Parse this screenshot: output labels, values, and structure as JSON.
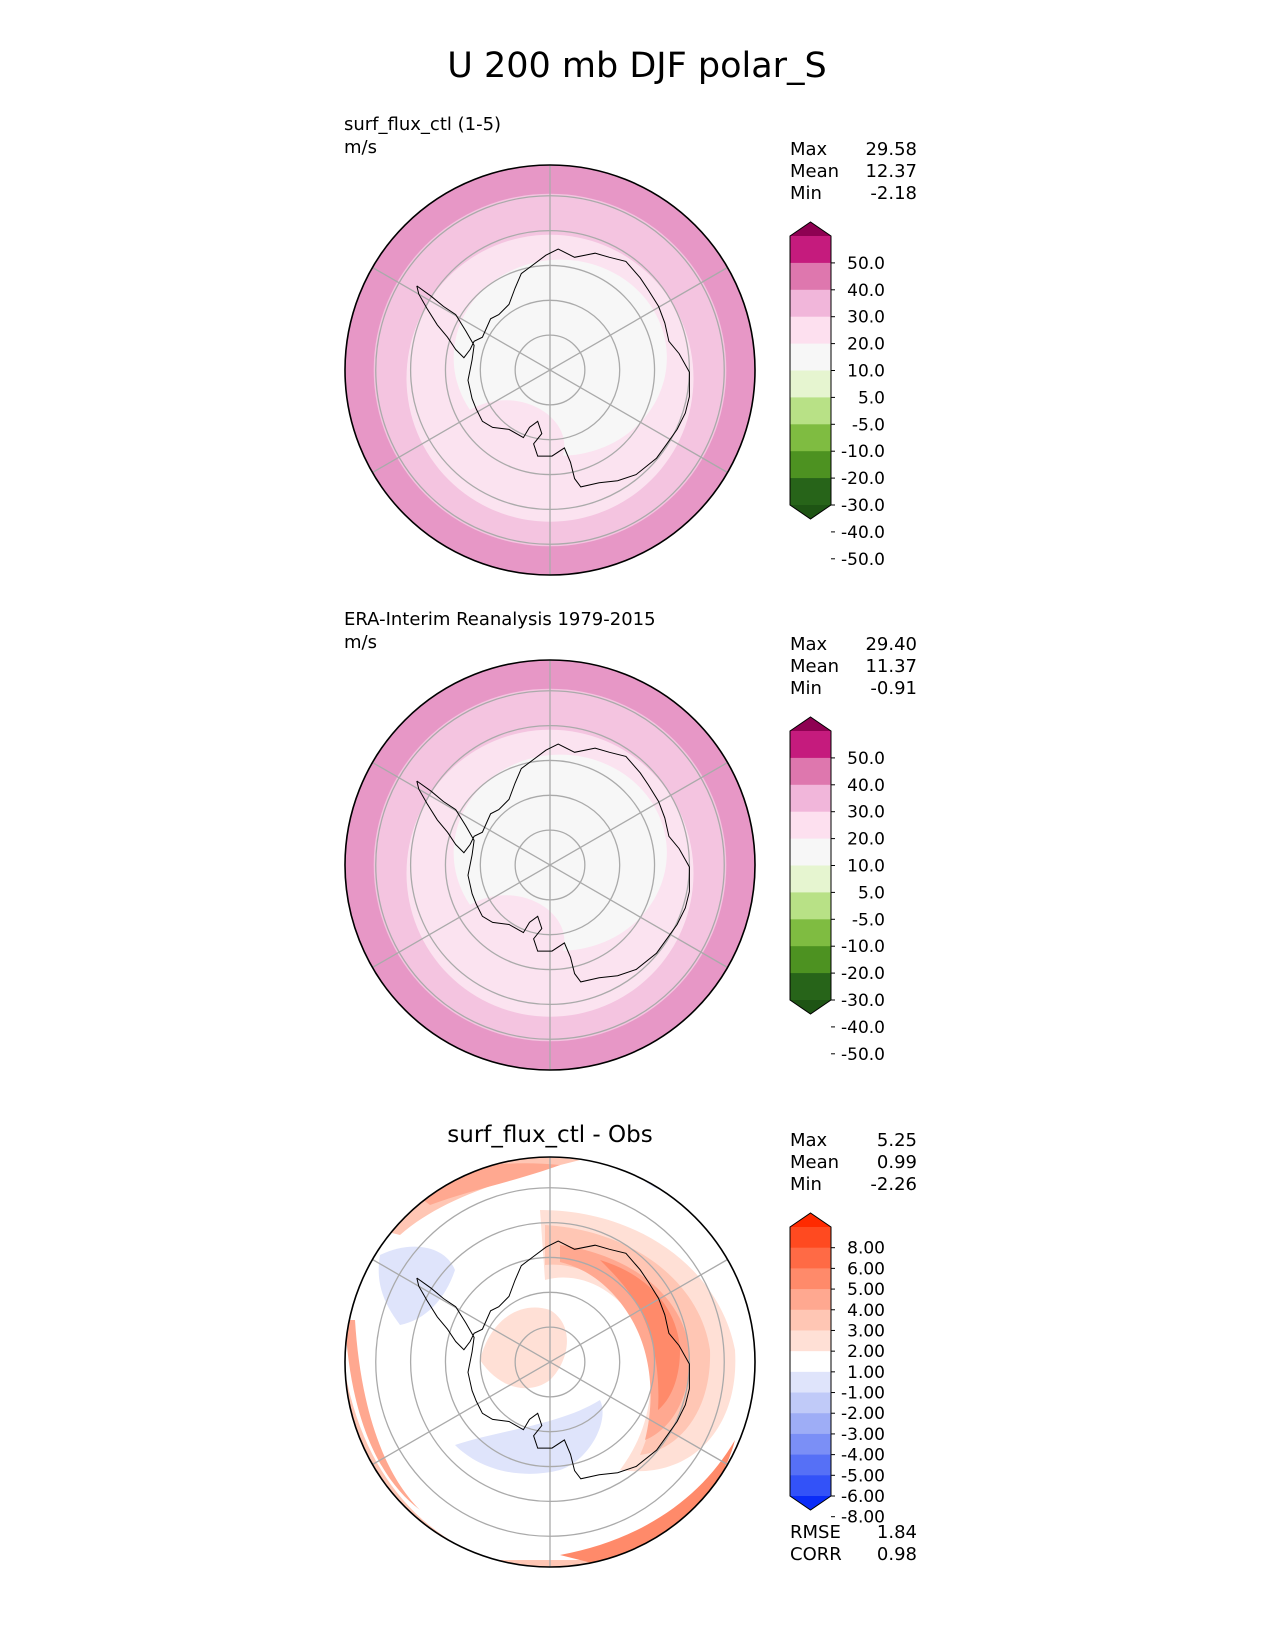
{
  "figure": {
    "title": "U 200 mb DJF polar_S"
  },
  "chart_data": [
    {
      "type": "heatmap",
      "projection": "south-polar-stereographic",
      "name": "surf_flux_ctl (1-5)",
      "units": "m/s",
      "stats": [
        {
          "label": "Max",
          "value": "29.58"
        },
        {
          "label": "Mean",
          "value": "12.37"
        },
        {
          "label": "Min",
          "value": "-2.18"
        }
      ],
      "colorbar": {
        "levels": [
          "50.0",
          "40.0",
          "30.0",
          "20.0",
          "10.0",
          "5.0",
          "-5.0",
          "-10.0",
          "-20.0",
          "-30.0",
          "-40.0",
          "-50.0"
        ],
        "colors": [
          "#8e0152",
          "#c51b7d",
          "#de77ae",
          "#f1b6da",
          "#fde0ef",
          "#f7f7f7",
          "#e6f5d0",
          "#b8e186",
          "#7fbc41",
          "#4d9221",
          "#276419",
          "#1e5414"
        ],
        "extend": "both"
      },
      "rings": [
        "#e797c6",
        "#f4c4e0",
        "#fbe3f0",
        "#f7f7f7"
      ],
      "gridlines": true
    },
    {
      "type": "heatmap",
      "projection": "south-polar-stereographic",
      "name": "ERA-Interim Reanalysis 1979-2015",
      "units": "m/s",
      "stats": [
        {
          "label": "Max",
          "value": "29.40"
        },
        {
          "label": "Mean",
          "value": "11.37"
        },
        {
          "label": "Min",
          "value": "-0.91"
        }
      ],
      "colorbar": {
        "levels": [
          "50.0",
          "40.0",
          "30.0",
          "20.0",
          "10.0",
          "5.0",
          "-5.0",
          "-10.0",
          "-20.0",
          "-30.0",
          "-40.0",
          "-50.0"
        ],
        "colors": [
          "#8e0152",
          "#c51b7d",
          "#de77ae",
          "#f1b6da",
          "#fde0ef",
          "#f7f7f7",
          "#e6f5d0",
          "#b8e186",
          "#7fbc41",
          "#4d9221",
          "#276419",
          "#1e5414"
        ],
        "extend": "both"
      },
      "rings": [
        "#e797c6",
        "#f4c4e0",
        "#fbe3f0",
        "#f7f7f7"
      ],
      "gridlines": true
    },
    {
      "type": "heatmap",
      "projection": "south-polar-stereographic",
      "name": "surf_flux_ctl - Obs",
      "stats": [
        {
          "label": "Max",
          "value": "5.25"
        },
        {
          "label": "Mean",
          "value": "0.99"
        },
        {
          "label": "Min",
          "value": "-2.26"
        }
      ],
      "metrics": [
        {
          "label": "RMSE",
          "value": "1.84"
        },
        {
          "label": "CORR",
          "value": "0.98"
        }
      ],
      "colorbar": {
        "levels": [
          "8.00",
          "6.00",
          "5.00",
          "4.00",
          "3.00",
          "2.00",
          "1.00",
          "-1.00",
          "-2.00",
          "-3.00",
          "-4.00",
          "-5.00",
          "-6.00",
          "-8.00"
        ],
        "colors": [
          "#ff2a00",
          "#ff4a20",
          "#ff6a45",
          "#ff8a6a",
          "#ffa890",
          "#ffc6b4",
          "#ffe0d6",
          "#ffffff",
          "#dfe4fb",
          "#c0caf8",
          "#9eadf6",
          "#7b8ff6",
          "#5670f6",
          "#3352f8",
          "#0a2cf8"
        ],
        "extend": "both"
      },
      "gridlines": true
    }
  ]
}
